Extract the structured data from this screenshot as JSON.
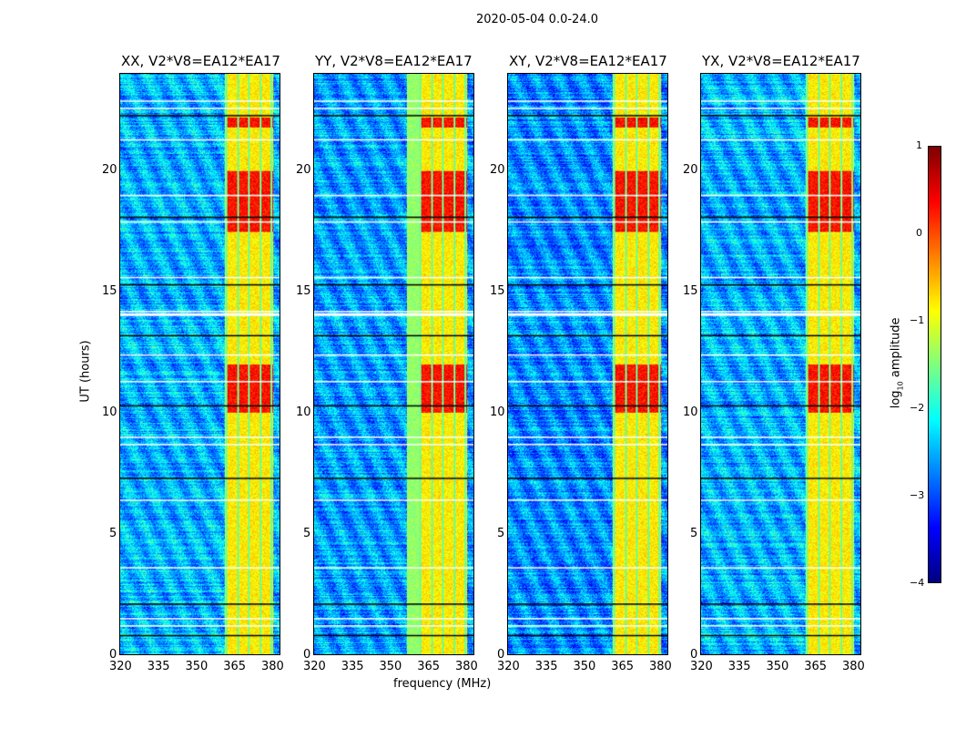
{
  "chart_data": {
    "type": "heatmap",
    "title": "2020-05-04 0.0-24.0",
    "xlabel": "frequency (MHz)",
    "ylabel": "UT (hours)",
    "xlim": [
      320,
      383.6
    ],
    "ylim": [
      0,
      24
    ],
    "xticks": [
      "320",
      "335",
      "350",
      "365",
      "380"
    ],
    "yticks": [
      "0",
      "5",
      "10",
      "15",
      "20"
    ],
    "colormap": "jet",
    "colorbar": {
      "label": "log10 amplitude",
      "label_main": "log",
      "label_sub": "10",
      "label_rest": " amplitude",
      "range": [
        -4,
        1
      ],
      "ticks": [
        "1",
        "0",
        "−1",
        "−2",
        "−3",
        "−4"
      ]
    },
    "panels": [
      {
        "title": "XX, V2*V8=EA12*EA17",
        "rfi_band_mhz": [
          361.5,
          381
        ],
        "background": -2.5
      },
      {
        "title": "YY, V2*V8=EA12*EA17",
        "rfi_band_mhz": [
          357,
          381
        ],
        "background": -2.6
      },
      {
        "title": "XY, V2*V8=EA12*EA17",
        "rfi_band_mhz": [
          361.5,
          381
        ],
        "background": -2.7
      },
      {
        "title": "YX, V2*V8=EA12*EA17",
        "rfi_band_mhz": [
          361.5,
          381
        ],
        "background": -2.5
      }
    ],
    "strong_rfi_hours": [
      [
        10,
        12
      ],
      [
        17.5,
        20
      ],
      [
        21.8,
        22.2
      ]
    ],
    "flagged_hours": [
      0.8,
      1.2,
      1.5,
      2.1,
      3.6,
      6.4,
      7.3,
      8.7,
      9.0,
      10.3,
      11.3,
      12.4,
      13.2,
      14.1,
      14.2,
      15.3,
      15.6,
      17.9,
      18.1,
      19.0,
      21.3,
      22.3,
      22.6,
      22.9
    ]
  }
}
